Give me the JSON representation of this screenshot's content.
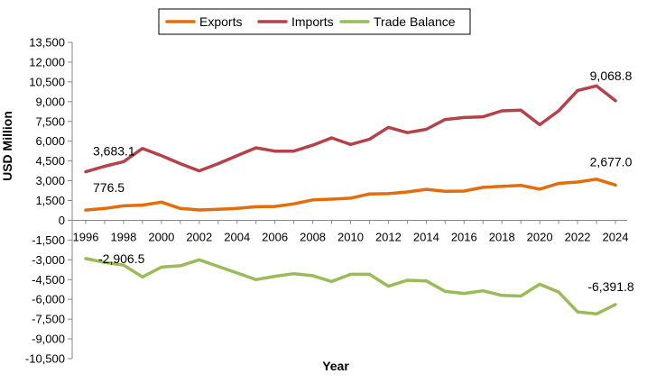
{
  "chart_data": {
    "type": "line",
    "title": "",
    "xlabel": "Year",
    "ylabel": "USD Million",
    "x": [
      1996,
      1997,
      1998,
      1999,
      2000,
      2001,
      2002,
      2003,
      2004,
      2005,
      2006,
      2007,
      2008,
      2009,
      2010,
      2011,
      2012,
      2013,
      2014,
      2015,
      2016,
      2017,
      2018,
      2019,
      2020,
      2021,
      2022,
      2023,
      2024
    ],
    "x_ticks": [
      "1996",
      "1998",
      "2000",
      "2002",
      "2004",
      "2006",
      "2008",
      "2010",
      "2012",
      "2014",
      "2016",
      "2018",
      "2020",
      "2022",
      "2024"
    ],
    "ylim": [
      -10500,
      13500
    ],
    "y_ticks": [
      "13,500",
      "12,000",
      "10,500",
      "9,000",
      "7,500",
      "6,000",
      "4,500",
      "3,000",
      "1,500",
      "0",
      "-1,500",
      "-3,000",
      "-4,500",
      "-6,000",
      "-7,500",
      "-9,000",
      "-10,500"
    ],
    "grid": false,
    "legend_position": "top",
    "series": [
      {
        "name": "Exports",
        "color": "#e46c0a",
        "values": [
          776.5,
          900,
          1100,
          1150,
          1380,
          900,
          780,
          830,
          900,
          1030,
          1050,
          1250,
          1550,
          1600,
          1680,
          2000,
          2020,
          2150,
          2350,
          2200,
          2220,
          2500,
          2580,
          2650,
          2360,
          2800,
          2900,
          3120,
          2677.0
        ]
      },
      {
        "name": "Imports",
        "color": "#b3424a",
        "values": [
          3683.1,
          4100,
          4450,
          5450,
          4900,
          4300,
          3750,
          4300,
          4900,
          5500,
          5250,
          5250,
          5700,
          6250,
          5750,
          6150,
          7050,
          6650,
          6900,
          7650,
          7800,
          7850,
          8300,
          8350,
          7250,
          8300,
          9850,
          10200,
          9068.8
        ]
      },
      {
        "name": "Trade Balance",
        "color": "#9bbb59",
        "values": [
          -2906.5,
          -3200,
          -3400,
          -4300,
          -3550,
          -3450,
          -3000,
          -3500,
          -4000,
          -4500,
          -4250,
          -4050,
          -4200,
          -4650,
          -4100,
          -4100,
          -5000,
          -4550,
          -4600,
          -5400,
          -5550,
          -5350,
          -5700,
          -5750,
          -4850,
          -5450,
          -6950,
          -7100,
          -6391.8
        ]
      }
    ],
    "annotations": [
      {
        "text": "776.5",
        "series": 0,
        "index": 0
      },
      {
        "text": "2,677.0",
        "series": 0,
        "index": 28
      },
      {
        "text": "3,683.1",
        "series": 1,
        "index": 0
      },
      {
        "text": "9,068.8",
        "series": 1,
        "index": 28
      },
      {
        "text": "-2,906.5",
        "series": 2,
        "index": 0
      },
      {
        "text": "-6,391.8",
        "series": 2,
        "index": 28
      }
    ]
  }
}
